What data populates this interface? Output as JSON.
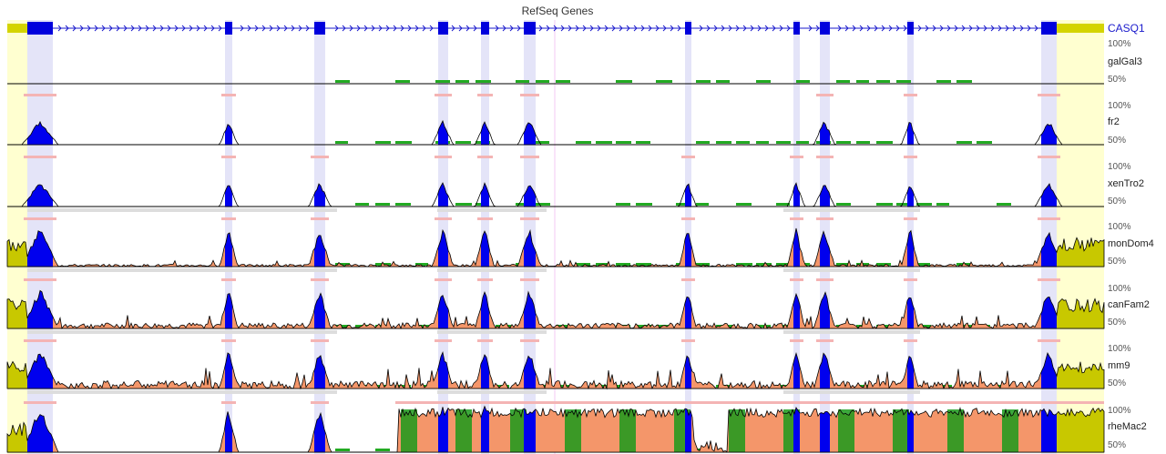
{
  "gene_track": {
    "title": "RefSeq Genes",
    "gene_name": "CASQ1"
  },
  "tracks": [
    {
      "species": "galGal3",
      "top_label": "100%",
      "bottom_label": "50%"
    },
    {
      "species": "fr2",
      "top_label": "100%",
      "bottom_label": "50%"
    },
    {
      "species": "xenTro2",
      "top_label": "100%",
      "bottom_label": "50%"
    },
    {
      "species": "monDom4",
      "top_label": "100%",
      "bottom_label": "50%"
    },
    {
      "species": "canFam2",
      "top_label": "100%",
      "bottom_label": "50%"
    },
    {
      "species": "mm9",
      "top_label": "100%",
      "bottom_label": "50%"
    },
    {
      "species": "rheMac2",
      "top_label": "100%",
      "bottom_label": "50%"
    }
  ],
  "colors": {
    "exon": "#0000dd",
    "gene_line": "#1a1acc",
    "utr": "#d4d400",
    "utr_shade": "#ffffd0",
    "exon_shade": "#e4e4f8",
    "coding_conserved": "#0000ee",
    "utr_conserved": "#c8c800",
    "intron_conserved": "#f4966a",
    "other_conserved": "#1a9a1a",
    "repeat_bar": "#22aa22",
    "pink_bar": "#f4b4b4",
    "gray_bar": "#dddddd"
  }
}
